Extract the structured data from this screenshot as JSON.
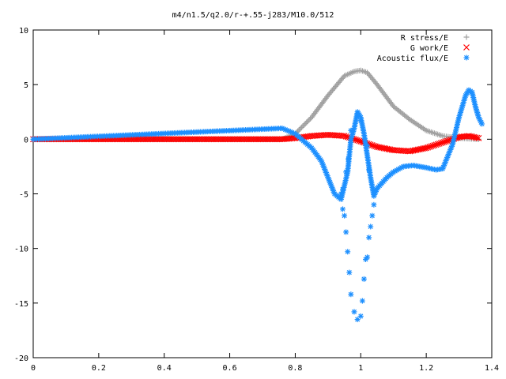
{
  "chart_data": {
    "type": "scatter",
    "title": "m4/n1.5/q2.0/r-+.55-j283/M10.0/512",
    "xlabel": "",
    "ylabel": "",
    "xlim": [
      0,
      1.4
    ],
    "ylim": [
      -20,
      10
    ],
    "x_ticks": [
      "0",
      "0.2",
      "0.4",
      "0.6",
      "0.8",
      "1",
      "1.2",
      "1.4"
    ],
    "y_ticks": [
      "10",
      "5",
      "0",
      "-5",
      "-10",
      "-15",
      "-20"
    ],
    "grid": false,
    "legend_position": "top-right",
    "series": [
      {
        "name": "R stress/E",
        "marker": "plus",
        "color": "#a0a0a0",
        "points": [
          [
            0.0,
            0.0
          ],
          [
            0.76,
            0.0
          ],
          [
            0.8,
            0.5
          ],
          [
            0.85,
            2.0
          ],
          [
            0.9,
            4.0
          ],
          [
            0.95,
            5.8
          ],
          [
            0.98,
            6.2
          ],
          [
            1.0,
            6.3
          ],
          [
            1.02,
            6.1
          ],
          [
            1.05,
            5.0
          ],
          [
            1.1,
            3.0
          ],
          [
            1.15,
            1.8
          ],
          [
            1.2,
            0.8
          ],
          [
            1.25,
            0.3
          ],
          [
            1.3,
            0.1
          ],
          [
            1.36,
            0.0
          ]
        ]
      },
      {
        "name": "G work/E",
        "marker": "cross",
        "color": "#ff0000",
        "points": [
          [
            0.0,
            0.0
          ],
          [
            0.76,
            0.0
          ],
          [
            0.8,
            0.1
          ],
          [
            0.85,
            0.3
          ],
          [
            0.9,
            0.4
          ],
          [
            0.95,
            0.3
          ],
          [
            1.0,
            -0.2
          ],
          [
            1.05,
            -0.7
          ],
          [
            1.1,
            -1.0
          ],
          [
            1.15,
            -1.1
          ],
          [
            1.2,
            -0.8
          ],
          [
            1.25,
            -0.3
          ],
          [
            1.3,
            0.2
          ],
          [
            1.33,
            0.3
          ],
          [
            1.36,
            0.1
          ]
        ]
      },
      {
        "name": "Acoustic flux/E",
        "marker": "star",
        "color": "#1e90ff",
        "points": [
          [
            0.0,
            0.0
          ],
          [
            0.76,
            1.0
          ],
          [
            0.8,
            0.5
          ],
          [
            0.85,
            -0.8
          ],
          [
            0.88,
            -2.0
          ],
          [
            0.9,
            -3.5
          ],
          [
            0.92,
            -5.0
          ],
          [
            0.94,
            -5.5
          ],
          [
            0.96,
            -3.0
          ],
          [
            0.97,
            0.0
          ],
          [
            0.98,
            1.0
          ],
          [
            0.99,
            2.5
          ],
          [
            1.0,
            2.0
          ],
          [
            1.01,
            0.5
          ],
          [
            1.02,
            -1.5
          ],
          [
            1.03,
            -3.5
          ],
          [
            1.04,
            -5.2
          ],
          [
            1.05,
            -4.5
          ],
          [
            1.08,
            -3.5
          ],
          [
            1.1,
            -3.0
          ],
          [
            1.13,
            -2.5
          ],
          [
            1.16,
            -2.4
          ],
          [
            1.2,
            -2.6
          ],
          [
            1.23,
            -2.8
          ],
          [
            1.25,
            -2.7
          ],
          [
            1.28,
            -0.5
          ],
          [
            1.3,
            2.0
          ],
          [
            1.32,
            4.0
          ],
          [
            1.33,
            4.5
          ],
          [
            1.34,
            4.3
          ],
          [
            1.35,
            3.0
          ],
          [
            1.36,
            2.0
          ],
          [
            1.37,
            1.4
          ],
          [
            0.94,
            -5.0
          ],
          [
            0.945,
            -6.4
          ],
          [
            0.95,
            -7.0
          ],
          [
            0.955,
            -8.5
          ],
          [
            0.96,
            -10.3
          ],
          [
            0.965,
            -12.2
          ],
          [
            0.97,
            -14.2
          ],
          [
            0.98,
            -15.8
          ],
          [
            0.99,
            -16.5
          ],
          [
            1.0,
            -16.2
          ],
          [
            1.005,
            -14.8
          ],
          [
            1.01,
            -12.8
          ],
          [
            1.015,
            -11.0
          ],
          [
            1.02,
            -10.8
          ],
          [
            1.025,
            -9.0
          ],
          [
            1.03,
            -8.0
          ],
          [
            1.035,
            -7.0
          ],
          [
            1.04,
            -6.0
          ],
          [
            0.945,
            -4.6
          ],
          [
            0.955,
            -3.0
          ],
          [
            0.962,
            -1.8
          ],
          [
            1.0,
            1.7
          ],
          [
            1.02,
            -0.6
          ],
          [
            1.025,
            -2.8
          ],
          [
            0.97,
            0.8
          ]
        ]
      }
    ]
  }
}
